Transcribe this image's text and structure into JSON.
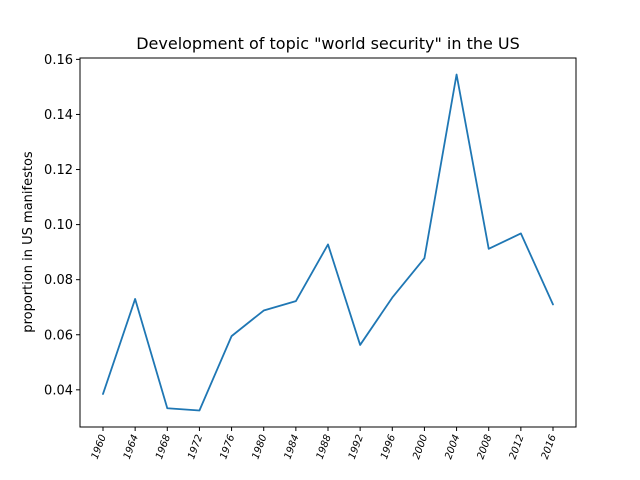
{
  "chart_data": {
    "type": "line",
    "title": "Development of topic \"world security\" in the US",
    "xlabel": "",
    "ylabel": "proportion in US manifestos",
    "categories": [
      "1960",
      "1964",
      "1968",
      "1972",
      "1976",
      "1980",
      "1984",
      "1988",
      "1992",
      "1996",
      "2000",
      "2004",
      "2008",
      "2012",
      "2016"
    ],
    "series": [
      {
        "color": "#1f77b4",
        "values": [
          0.0385,
          0.073,
          0.0333,
          0.0325,
          0.0595,
          0.0688,
          0.0722,
          0.0928,
          0.0563,
          0.0735,
          0.0878,
          0.1545,
          0.0912,
          0.0968,
          0.071
        ]
      }
    ],
    "ylim": [
      0.0265,
      0.1605
    ],
    "yticks": [
      "0.04",
      "0.06",
      "0.08",
      "0.10",
      "0.12",
      "0.14",
      "0.16"
    ],
    "ytick_values": [
      0.04,
      0.06,
      0.08,
      0.1,
      0.12,
      0.14,
      0.16
    ],
    "grid": false,
    "legend": "none"
  }
}
